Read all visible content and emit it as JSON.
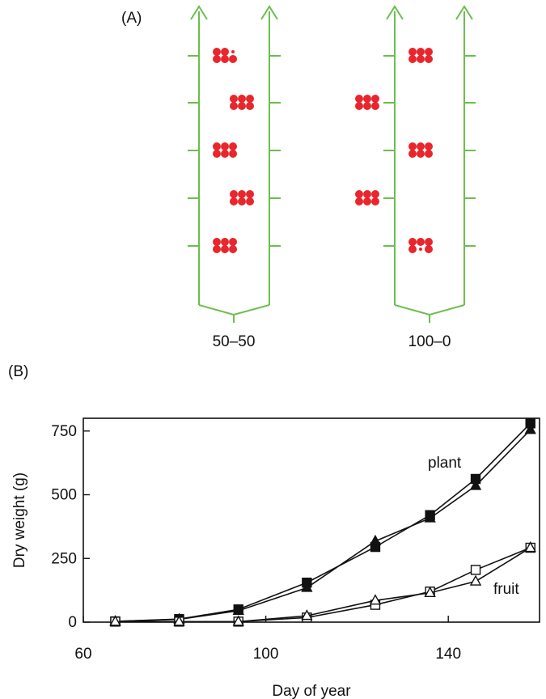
{
  "panel_a": {
    "label": "(A)",
    "colors": {
      "stem": "#6abf4b",
      "fruit": "#e8262b"
    },
    "plants": [
      {
        "label": "50–50",
        "fruit_sides": [
          "left",
          "right",
          "left",
          "right",
          "left"
        ]
      },
      {
        "label": "100–0",
        "fruit_sides": [
          "right",
          "left",
          "right",
          "left",
          "right"
        ]
      }
    ]
  },
  "panel_b": {
    "label": "(B)",
    "annotations": {
      "plant": "plant",
      "fruit": "fruit"
    }
  },
  "chart_data": {
    "type": "line",
    "xlabel": "Day of year",
    "ylabel": "Dry weight (g)",
    "xlim": [
      60,
      160
    ],
    "ylim": [
      0,
      800
    ],
    "xticks": [
      60,
      100,
      140
    ],
    "yticks": [
      0,
      250,
      500,
      750
    ],
    "series": [
      {
        "marker": "filled-square",
        "points": [
          [
            67,
            3
          ],
          [
            81,
            12
          ],
          [
            94,
            50
          ],
          [
            109,
            155
          ],
          [
            124,
            295
          ],
          [
            136,
            420
          ],
          [
            146,
            562
          ],
          [
            158,
            780
          ]
        ]
      },
      {
        "marker": "filled-triangle",
        "points": [
          [
            67,
            3
          ],
          [
            81,
            11
          ],
          [
            94,
            45
          ],
          [
            109,
            135
          ],
          [
            124,
            318
          ],
          [
            136,
            408
          ],
          [
            146,
            535
          ],
          [
            158,
            755
          ]
        ]
      },
      {
        "marker": "open-square",
        "points": [
          [
            67,
            2
          ],
          [
            81,
            2
          ],
          [
            94,
            2
          ],
          [
            109,
            18
          ],
          [
            124,
            68
          ],
          [
            136,
            120
          ],
          [
            146,
            205
          ],
          [
            158,
            292
          ]
        ]
      },
      {
        "marker": "open-triangle",
        "points": [
          [
            67,
            2
          ],
          [
            81,
            2
          ],
          [
            94,
            2
          ],
          [
            109,
            25
          ],
          [
            124,
            85
          ],
          [
            136,
            115
          ],
          [
            146,
            160
          ],
          [
            158,
            292
          ]
        ]
      }
    ]
  }
}
